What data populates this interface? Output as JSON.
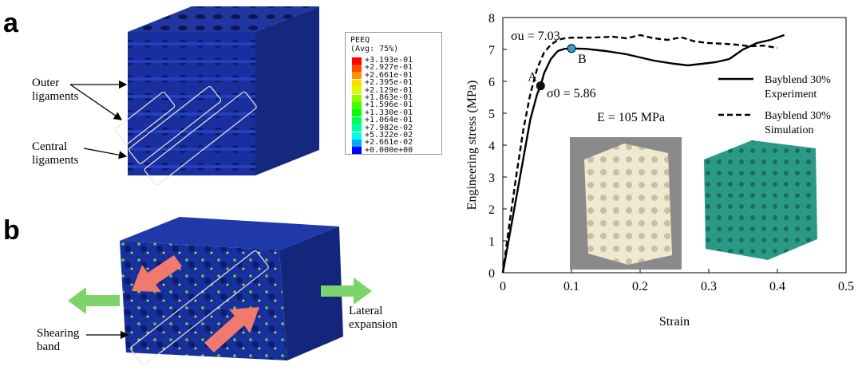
{
  "panels": {
    "a": "a",
    "b": "b"
  },
  "legend": {
    "title_line1": "PEEQ",
    "title_line2": "(Avg: 75%)",
    "entries": [
      {
        "label": "+3.193e-01",
        "color": "#ff0000"
      },
      {
        "label": "+2.927e-01",
        "color": "#ff4a00"
      },
      {
        "label": "+2.661e-01",
        "color": "#ff9400"
      },
      {
        "label": "+2.395e-01",
        "color": "#ffdd00"
      },
      {
        "label": "+2.129e-01",
        "color": "#d4ff00"
      },
      {
        "label": "+1.863e-01",
        "color": "#8aff00"
      },
      {
        "label": "+1.596e-01",
        "color": "#3fff00"
      },
      {
        "label": "+1.330e-01",
        "color": "#00ff0a"
      },
      {
        "label": "+1.064e-01",
        "color": "#00ff55"
      },
      {
        "label": "+7.982e-02",
        "color": "#00ffa0"
      },
      {
        "label": "+5.322e-02",
        "color": "#00ffea"
      },
      {
        "label": "+2.661e-02",
        "color": "#00aaff"
      },
      {
        "label": "+0.000e+00",
        "color": "#0000ff"
      }
    ]
  },
  "panel_a": {
    "outer_label_1": "Outer",
    "outer_label_2": "ligaments",
    "central_label_1": "Central",
    "central_label_2": "ligaments"
  },
  "panel_b": {
    "shear_label_1": "Shearing",
    "shear_label_2": "band",
    "lateral_label_1": "Lateral",
    "lateral_label_2": "expansion"
  },
  "colors": {
    "cube_blue": "#1a2f9e",
    "cube_dark": "#0e1a6a",
    "arrow_green": "#7dd46a",
    "arrow_red": "#f07a6e",
    "sim_cube": "#2a9a86"
  },
  "chart_data": {
    "type": "line",
    "xlabel": "Strain",
    "ylabel": "Engineering stress (MPa)",
    "xlim": [
      0,
      0.5
    ],
    "ylim": [
      0,
      8
    ],
    "xticks": [
      "0",
      "0.1",
      "0.2",
      "0.3",
      "0.4",
      "0.5"
    ],
    "yticks": [
      "0",
      "1",
      "2",
      "3",
      "4",
      "5",
      "6",
      "7",
      "8"
    ],
    "series": [
      {
        "name": "Bayblend 30% Experiment",
        "style": "solid",
        "x": [
          0,
          0.01,
          0.02,
          0.03,
          0.04,
          0.05,
          0.055,
          0.06,
          0.07,
          0.08,
          0.09,
          0.1,
          0.12,
          0.15,
          0.18,
          0.2,
          0.22,
          0.25,
          0.27,
          0.29,
          0.31,
          0.33,
          0.35,
          0.37,
          0.39,
          0.41
        ],
        "y": [
          0,
          1.2,
          2.4,
          3.6,
          4.8,
          5.6,
          5.86,
          6.25,
          6.7,
          6.95,
          7.02,
          7.03,
          7.02,
          6.95,
          6.85,
          6.75,
          6.65,
          6.55,
          6.5,
          6.55,
          6.6,
          6.7,
          7.0,
          7.2,
          7.3,
          7.45
        ]
      },
      {
        "name": "Bayblend 30% Simulation",
        "style": "dashed",
        "x": [
          0,
          0.01,
          0.02,
          0.03,
          0.04,
          0.05,
          0.06,
          0.07,
          0.08,
          0.09,
          0.1,
          0.12,
          0.14,
          0.16,
          0.18,
          0.2,
          0.22,
          0.24,
          0.26,
          0.28,
          0.3,
          0.32,
          0.34,
          0.36,
          0.38,
          0.4
        ],
        "y": [
          0,
          1.6,
          3.1,
          4.5,
          5.6,
          6.4,
          6.9,
          7.15,
          7.3,
          7.35,
          7.37,
          7.37,
          7.38,
          7.4,
          7.35,
          7.45,
          7.35,
          7.3,
          7.38,
          7.25,
          7.2,
          7.18,
          7.15,
          7.1,
          7.12,
          7.05
        ]
      }
    ],
    "points": [
      {
        "label": "A",
        "x": 0.055,
        "y": 5.86,
        "color": "#111111"
      },
      {
        "label": "B",
        "x": 0.1,
        "y": 7.03,
        "color": "#2aa6d6"
      }
    ],
    "annotations": {
      "sigma_u": "σu = 7.03",
      "sigma_0": "σ0 = 5.86",
      "modulus": "E = 105 MPa"
    },
    "legend_placement": "right"
  }
}
